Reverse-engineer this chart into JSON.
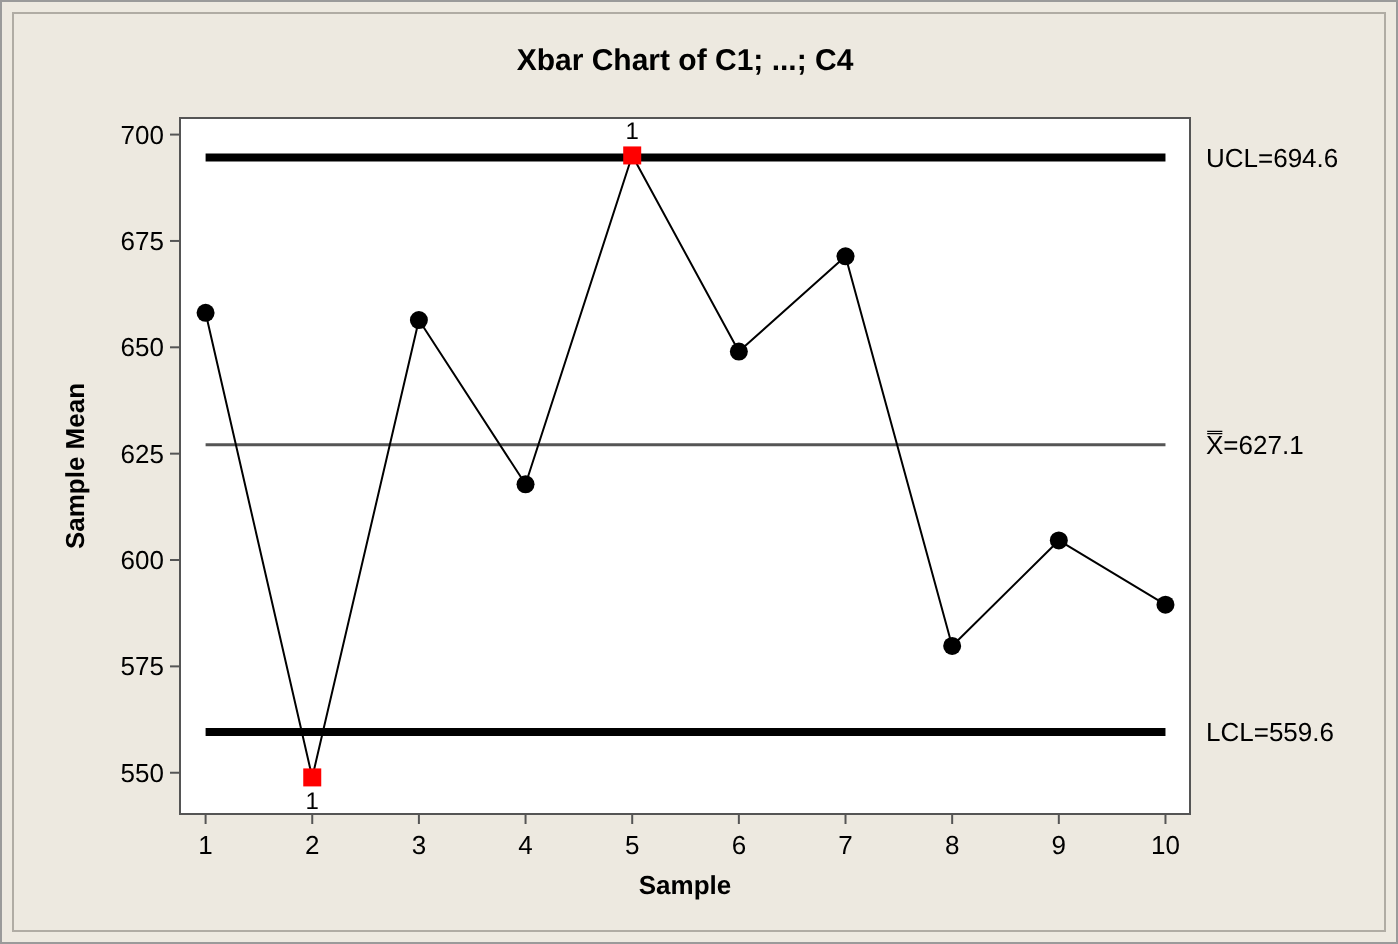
{
  "chart_data": {
    "type": "line",
    "title": "Xbar Chart of C1; ...; C4",
    "xlabel": "Sample",
    "ylabel": "Sample Mean",
    "x": [
      1,
      2,
      3,
      4,
      5,
      6,
      7,
      8,
      9,
      10
    ],
    "series": [
      {
        "color": "#000000",
        "marker": "none",
        "values": [
          658.1,
          548.9,
          656.4,
          617.8,
          695.1,
          649.0,
          671.4,
          579.8,
          604.6,
          589.5
        ]
      },
      {
        "type": "scatter",
        "color": "#000000",
        "marker": "circle",
        "values": [
          658.1,
          null,
          656.4,
          617.8,
          null,
          649.0,
          671.4,
          579.8,
          604.6,
          589.5
        ]
      },
      {
        "type": "scatter",
        "color": "#ff0000",
        "marker": "square",
        "values": [
          null,
          548.9,
          null,
          null,
          695.1,
          null,
          null,
          null,
          null,
          null
        ]
      }
    ],
    "xlim": [
      0.76,
      10.23
    ],
    "xticks": [
      1,
      2,
      3,
      4,
      5,
      6,
      7,
      8,
      9,
      10
    ],
    "ylim": [
      540.3,
      703.9
    ],
    "yticks": [
      550,
      575,
      600,
      625,
      650,
      675,
      700
    ],
    "ref_lines": [
      {
        "axis": "y",
        "value": 694.6,
        "label": "UCL=694.6",
        "color": "#000000",
        "line_style": "solid"
      },
      {
        "axis": "y",
        "value": 627.1,
        "label": "X̿=627.1",
        "color": "#555555",
        "line_style": "solid"
      },
      {
        "axis": "y",
        "value": 559.6,
        "label": "LCL=559.6",
        "color": "#000000",
        "line_style": "solid"
      }
    ],
    "annotations": [
      {
        "text": "1",
        "x": 2,
        "y": 548.9
      },
      {
        "text": "1",
        "x": 5,
        "y": 695.1
      }
    ],
    "grid": false
  }
}
